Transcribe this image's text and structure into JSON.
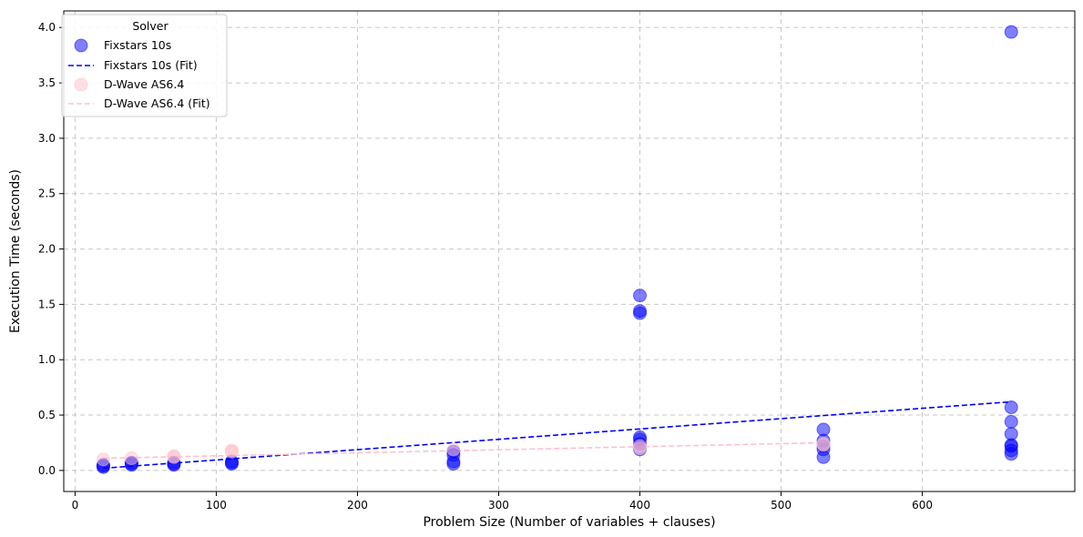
{
  "chart_data": {
    "type": "scatter",
    "xlabel": "Problem Size (Number of variables + clauses)",
    "ylabel": "Execution Time (seconds)",
    "xlim": [
      -8,
      708
    ],
    "ylim": [
      -0.19,
      4.15
    ],
    "xticks": [
      0,
      100,
      200,
      300,
      400,
      500,
      600
    ],
    "yticks": [
      0.0,
      0.5,
      1.0,
      1.5,
      2.0,
      2.5,
      3.0,
      3.5,
      4.0
    ],
    "grid": true,
    "legend": {
      "title": "Solver",
      "placement": "top-left",
      "entries": [
        "Fixstars 10s",
        "Fixstars 10s (Fit)",
        "D-Wave AS6.4",
        "D-Wave AS6.4 (Fit)"
      ]
    },
    "series": [
      {
        "name": "Fixstars 10s",
        "kind": "scatter",
        "color": "#0000ff",
        "points": [
          [
            20,
            0.03
          ],
          [
            20,
            0.04
          ],
          [
            20,
            0.05
          ],
          [
            40,
            0.05
          ],
          [
            40,
            0.06
          ],
          [
            40,
            0.07
          ],
          [
            70,
            0.05
          ],
          [
            70,
            0.06
          ],
          [
            70,
            0.07
          ],
          [
            111,
            0.06
          ],
          [
            111,
            0.07
          ],
          [
            111,
            0.08
          ],
          [
            268,
            0.06
          ],
          [
            268,
            0.08
          ],
          [
            268,
            0.14
          ],
          [
            268,
            0.17
          ],
          [
            400,
            1.42
          ],
          [
            400,
            1.44
          ],
          [
            400,
            1.58
          ],
          [
            400,
            0.19
          ],
          [
            400,
            0.24
          ],
          [
            400,
            0.28
          ],
          [
            400,
            0.3
          ],
          [
            530,
            0.12
          ],
          [
            530,
            0.19
          ],
          [
            530,
            0.22
          ],
          [
            530,
            0.27
          ],
          [
            530,
            0.37
          ],
          [
            663,
            3.96
          ],
          [
            663,
            0.57
          ],
          [
            663,
            0.44
          ],
          [
            663,
            0.33
          ],
          [
            663,
            0.23
          ],
          [
            663,
            0.22
          ],
          [
            663,
            0.18
          ],
          [
            663,
            0.15
          ]
        ]
      },
      {
        "name": "Fixstars 10s (Fit)",
        "kind": "line",
        "color": "#0000ff",
        "dash": "6,3",
        "points": [
          [
            20,
            0.02
          ],
          [
            663,
            0.62
          ]
        ]
      },
      {
        "name": "D-Wave AS6.4",
        "kind": "scatter",
        "color": "#ffc0cb",
        "points": [
          [
            20,
            0.1
          ],
          [
            40,
            0.11
          ],
          [
            70,
            0.12
          ],
          [
            70,
            0.13
          ],
          [
            111,
            0.17
          ],
          [
            111,
            0.18
          ],
          [
            268,
            0.19
          ],
          [
            400,
            0.2
          ],
          [
            400,
            0.22
          ],
          [
            530,
            0.23
          ],
          [
            530,
            0.24
          ]
        ]
      },
      {
        "name": "D-Wave AS6.4 (Fit)",
        "kind": "line",
        "color": "#ffc0cb",
        "dash": "6,3",
        "points": [
          [
            20,
            0.11
          ],
          [
            530,
            0.25
          ]
        ]
      }
    ]
  }
}
